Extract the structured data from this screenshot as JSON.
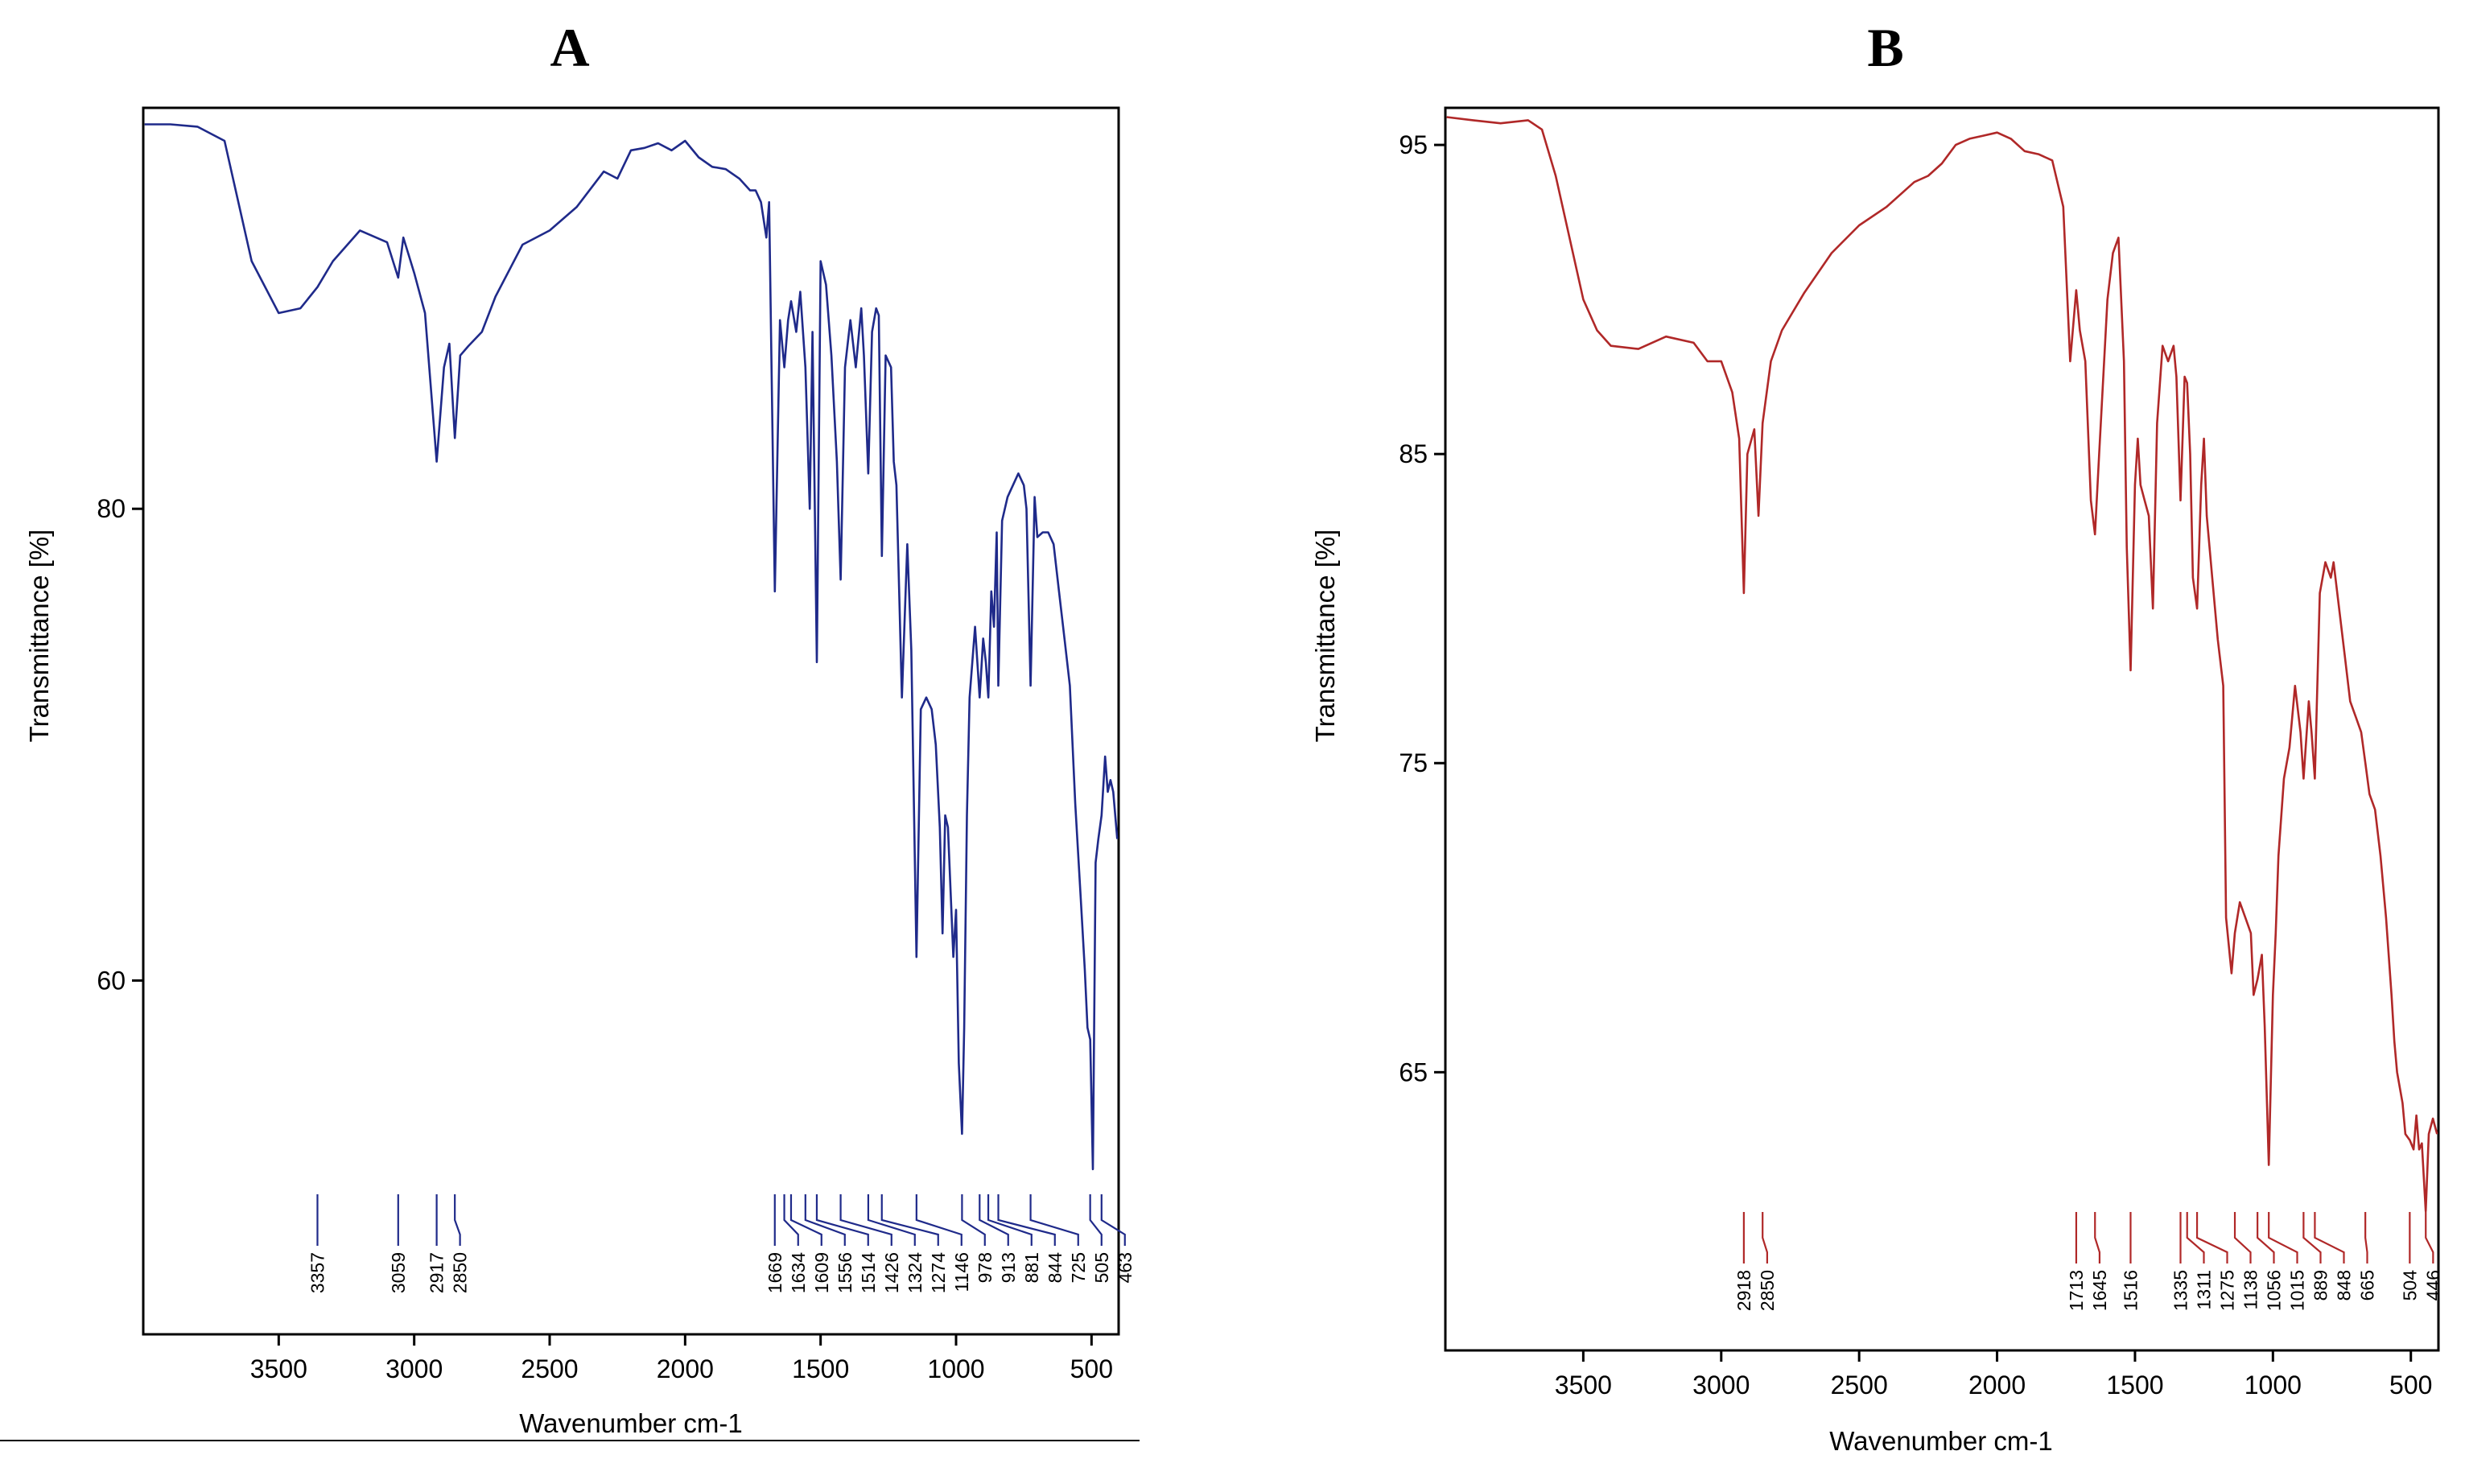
{
  "chart_data": [
    {
      "panel": "A",
      "type": "line",
      "title": "A",
      "xlabel": "Wavenumber cm-1",
      "ylabel": "Transmittance [%]",
      "xlim": [
        4000,
        400
      ],
      "ylim": [
        45,
        97
      ],
      "x_ticks": [
        3500,
        3000,
        2500,
        2000,
        1500,
        1000,
        500
      ],
      "x_tick_labels": [
        "3500",
        "3000",
        "2500",
        "2000",
        "1500",
        "1000",
        "500"
      ],
      "y_ticks": [
        60,
        80
      ],
      "y_tick_labels": [
        "60",
        "80"
      ],
      "color": "#1f2a8a",
      "peaks": [
        "3357",
        "3059",
        "2917",
        "2850",
        "1669",
        "1634",
        "1609",
        "1556",
        "1514",
        "1426",
        "1324",
        "1274",
        "1146",
        "978",
        "913",
        "881",
        "844",
        "725",
        "505",
        "463"
      ],
      "series": [
        {
          "name": "A",
          "x": [
            3995,
            3900,
            3800,
            3700,
            3600,
            3500,
            3420,
            3357,
            3300,
            3200,
            3100,
            3059,
            3040,
            3000,
            2960,
            2917,
            2890,
            2870,
            2850,
            2830,
            2800,
            2750,
            2700,
            2600,
            2500,
            2400,
            2300,
            2250,
            2200,
            2150,
            2100,
            2050,
            2000,
            1950,
            1900,
            1850,
            1800,
            1760,
            1740,
            1720,
            1700,
            1690,
            1669,
            1650,
            1634,
            1620,
            1609,
            1590,
            1575,
            1556,
            1540,
            1530,
            1514,
            1500,
            1480,
            1460,
            1440,
            1426,
            1410,
            1390,
            1370,
            1350,
            1340,
            1324,
            1310,
            1295,
            1285,
            1274,
            1260,
            1240,
            1230,
            1220,
            1200,
            1180,
            1165,
            1146,
            1130,
            1110,
            1090,
            1075,
            1060,
            1050,
            1040,
            1030,
            1010,
            1000,
            990,
            978,
            970,
            960,
            950,
            940,
            930,
            913,
            900,
            890,
            881,
            870,
            860,
            850,
            844,
            830,
            810,
            790,
            770,
            750,
            740,
            725,
            710,
            700,
            680,
            660,
            640,
            620,
            600,
            580,
            560,
            540,
            525,
            515,
            505,
            495,
            485,
            475,
            463,
            450,
            440,
            430,
            420,
            405
          ],
          "values": [
            96.3,
            96.3,
            96.2,
            95.6,
            90.5,
            88.3,
            88.5,
            89.4,
            90.5,
            91.8,
            91.3,
            89.8,
            91.5,
            90.0,
            88.3,
            82.0,
            86.0,
            87.0,
            83.0,
            86.5,
            86.9,
            87.5,
            89.0,
            91.2,
            91.8,
            92.8,
            94.3,
            94.0,
            95.2,
            95.3,
            95.5,
            95.2,
            95.6,
            94.9,
            94.5,
            94.4,
            94.0,
            93.5,
            93.5,
            93.0,
            91.5,
            93.0,
            76.5,
            88.0,
            86.0,
            88.0,
            88.8,
            87.5,
            89.2,
            86.0,
            80.0,
            87.5,
            73.5,
            90.5,
            89.5,
            86.5,
            82.0,
            77.0,
            86.0,
            88.0,
            86.0,
            88.5,
            86.5,
            81.5,
            87.5,
            88.5,
            88.2,
            78.0,
            86.5,
            86.0,
            82.0,
            81.0,
            72.0,
            78.5,
            74.0,
            61.0,
            71.5,
            72.0,
            71.5,
            70.0,
            66.5,
            62.0,
            67.0,
            66.5,
            61.0,
            63.0,
            56.5,
            53.5,
            58.0,
            67.0,
            72.0,
            73.5,
            75.0,
            72.0,
            74.5,
            73.5,
            72.0,
            76.5,
            75.0,
            79.0,
            72.5,
            79.5,
            80.5,
            81.0,
            81.5,
            81.0,
            80.0,
            72.5,
            80.5,
            78.8,
            79.0,
            79.0,
            78.5,
            76.5,
            74.5,
            72.5,
            67.5,
            63.5,
            60.5,
            58.0,
            57.5,
            52.0,
            65.0,
            66.0,
            67.0,
            69.5,
            68.0,
            68.5,
            68.0,
            66.0
          ]
        }
      ]
    },
    {
      "panel": "B",
      "type": "line",
      "title": "B",
      "xlabel": "Wavenumber cm-1",
      "ylabel": "Transmittance [%]",
      "xlim": [
        4000,
        400
      ],
      "ylim": [
        56,
        96.2
      ],
      "x_ticks": [
        3500,
        3000,
        2500,
        2000,
        1500,
        1000,
        500
      ],
      "x_tick_labels": [
        "3500",
        "3000",
        "2500",
        "2000",
        "1500",
        "1000",
        "500"
      ],
      "y_ticks": [
        65,
        75,
        85,
        95
      ],
      "y_tick_labels": [
        "65",
        "75",
        "85",
        "95"
      ],
      "color": "#b02828",
      "peaks": [
        "2918",
        "2850",
        "1713",
        "1645",
        "1516",
        "1335",
        "1311",
        "1275",
        "1138",
        "1056",
        "1015",
        "889",
        "848",
        "665",
        "504",
        "446"
      ],
      "series": [
        {
          "name": "B",
          "x": [
            3995,
            3900,
            3800,
            3700,
            3650,
            3600,
            3500,
            3450,
            3400,
            3300,
            3200,
            3100,
            3050,
            3000,
            2960,
            2935,
            2918,
            2905,
            2880,
            2865,
            2850,
            2820,
            2780,
            2700,
            2600,
            2500,
            2400,
            2300,
            2250,
            2200,
            2150,
            2100,
            2050,
            2000,
            1950,
            1900,
            1850,
            1800,
            1760,
            1735,
            1713,
            1700,
            1680,
            1660,
            1645,
            1630,
            1600,
            1580,
            1560,
            1540,
            1530,
            1516,
            1500,
            1490,
            1480,
            1465,
            1450,
            1435,
            1420,
            1400,
            1380,
            1360,
            1350,
            1335,
            1320,
            1311,
            1300,
            1290,
            1275,
            1260,
            1250,
            1240,
            1220,
            1200,
            1180,
            1170,
            1150,
            1138,
            1120,
            1100,
            1080,
            1070,
            1056,
            1040,
            1030,
            1015,
            1000,
            990,
            980,
            960,
            940,
            920,
            900,
            889,
            870,
            860,
            848,
            830,
            810,
            790,
            780,
            760,
            740,
            720,
            700,
            680,
            665,
            650,
            630,
            610,
            590,
            570,
            560,
            550,
            540,
            530,
            520,
            504,
            490,
            480,
            470,
            460,
            446,
            435,
            420,
            405
          ],
          "values": [
            95.9,
            95.8,
            95.7,
            95.8,
            95.5,
            94.0,
            90.0,
            89.0,
            88.5,
            88.4,
            88.8,
            88.6,
            88.0,
            88.0,
            87.0,
            85.5,
            80.5,
            85.0,
            85.8,
            83.0,
            86.0,
            88.0,
            89.0,
            90.2,
            91.5,
            92.4,
            93.0,
            93.8,
            94.0,
            94.4,
            95.0,
            95.2,
            95.3,
            95.4,
            95.2,
            94.8,
            94.7,
            94.5,
            93.0,
            88.0,
            90.3,
            89.0,
            88.0,
            83.5,
            82.4,
            85.0,
            90.0,
            91.5,
            92.0,
            88.0,
            82.0,
            78.0,
            84.0,
            85.5,
            84.0,
            83.5,
            83.0,
            80.0,
            86.0,
            88.5,
            88.0,
            88.5,
            87.5,
            83.5,
            87.5,
            87.3,
            85.0,
            81.0,
            80.0,
            84.0,
            85.5,
            83.0,
            81.0,
            79.0,
            77.5,
            70.0,
            68.2,
            69.5,
            70.5,
            70.0,
            69.5,
            67.5,
            68.0,
            68.8,
            66.5,
            62.0,
            67.5,
            69.5,
            72.0,
            74.5,
            75.5,
            77.5,
            76.0,
            74.5,
            77.0,
            76.0,
            74.5,
            80.5,
            81.5,
            81.0,
            81.5,
            80.0,
            78.5,
            77.0,
            76.5,
            76.0,
            75.0,
            74.0,
            73.5,
            72.0,
            70.0,
            67.5,
            66.0,
            65.0,
            64.5,
            64.0,
            63.0,
            62.8,
            62.5,
            63.6,
            62.5,
            62.7,
            60.5,
            63.0,
            63.5,
            63.0
          ]
        }
      ]
    }
  ]
}
